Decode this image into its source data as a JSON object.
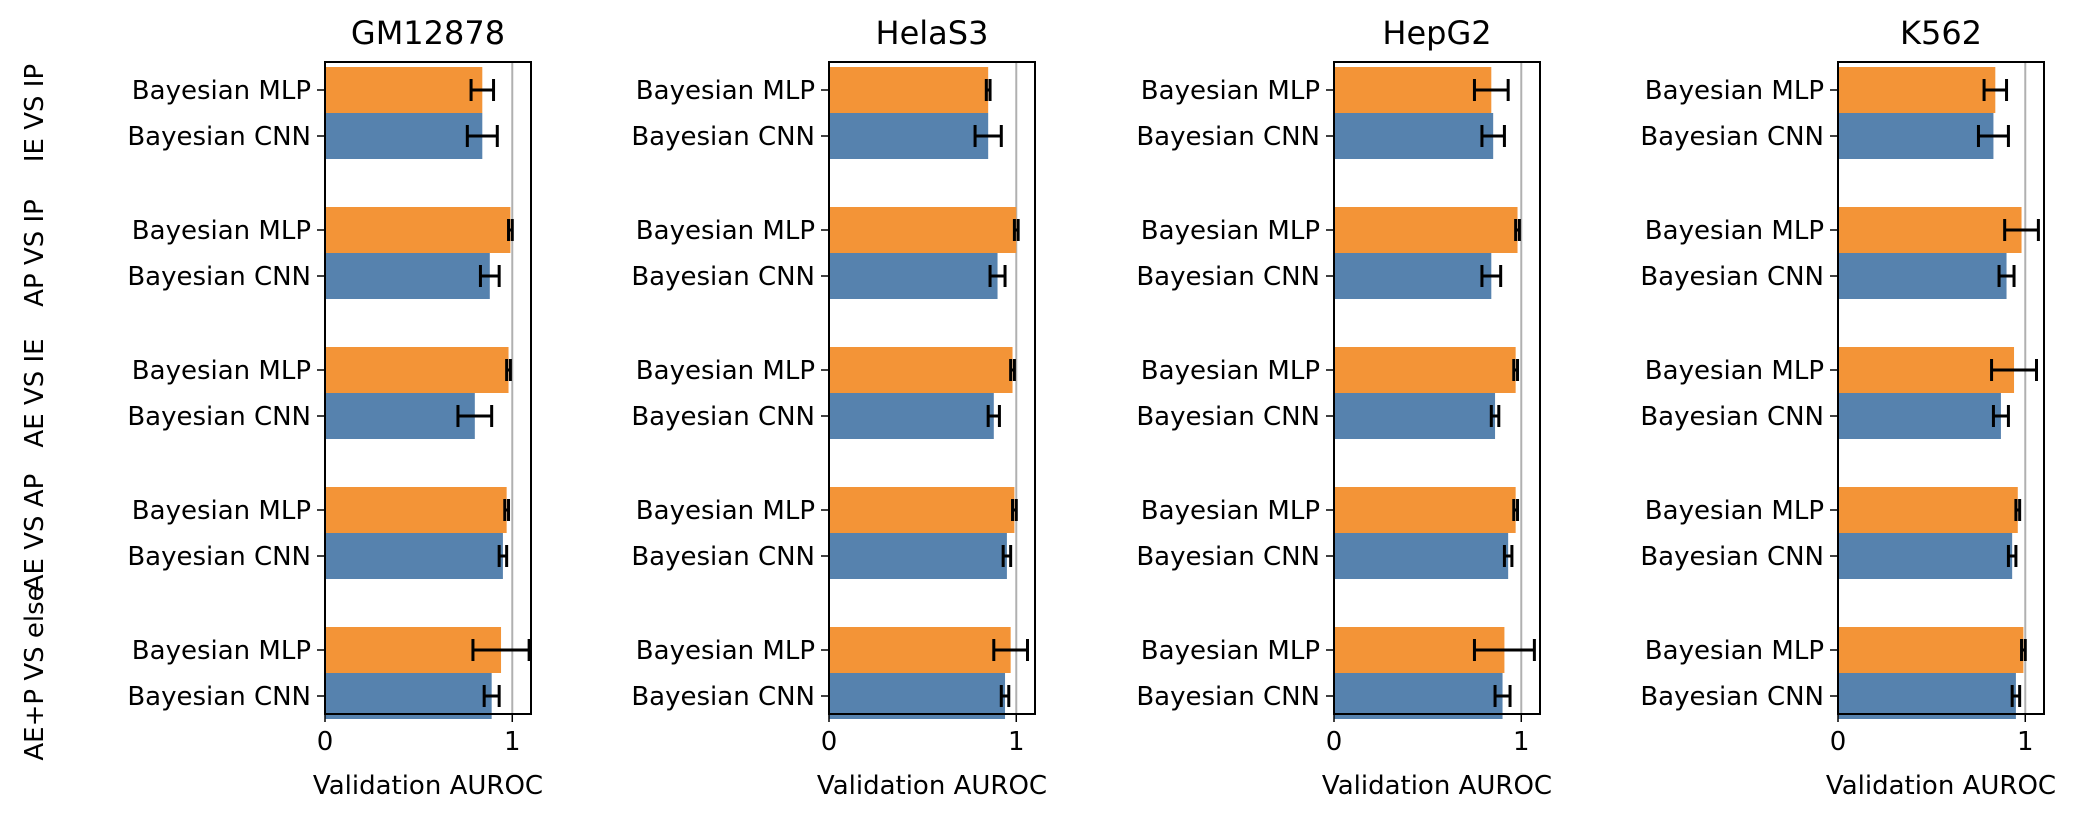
{
  "chart_data": {
    "type": "bar",
    "orientation": "horizontal",
    "colors": {
      "Bayesian MLP": "#f39437",
      "Bayesian CNN": "#5682ae",
      "error_bar": "#000000",
      "reference_line": "#b0b0b0"
    },
    "row_group_labels": [
      "IE VS IP",
      "AP VS IP",
      "AE VS IE",
      "AE VS AP",
      "AE+P VS else"
    ],
    "bar_labels": [
      "Bayesian MLP",
      "Bayesian CNN"
    ],
    "xlabel": "Validation AUROC",
    "xlim": [
      0,
      1.1
    ],
    "x_ticks": [
      "0",
      "1"
    ],
    "reference_line_x": 1.0,
    "grid": false,
    "panels": [
      {
        "title": "GM12878",
        "groups": [
          {
            "label": "IE VS IP",
            "Bayesian MLP": {
              "value": 0.84,
              "err": 0.06
            },
            "Bayesian CNN": {
              "value": 0.84,
              "err": 0.08
            }
          },
          {
            "label": "AP VS IP",
            "Bayesian MLP": {
              "value": 0.99,
              "err": 0.01
            },
            "Bayesian CNN": {
              "value": 0.88,
              "err": 0.05
            }
          },
          {
            "label": "AE VS IE",
            "Bayesian MLP": {
              "value": 0.98,
              "err": 0.01
            },
            "Bayesian CNN": {
              "value": 0.8,
              "err": 0.09
            }
          },
          {
            "label": "AE VS AP",
            "Bayesian MLP": {
              "value": 0.97,
              "err": 0.01
            },
            "Bayesian CNN": {
              "value": 0.95,
              "err": 0.02
            }
          },
          {
            "label": "AE+P VS else",
            "Bayesian MLP": {
              "value": 0.94,
              "err": 0.15
            },
            "Bayesian CNN": {
              "value": 0.89,
              "err": 0.04
            }
          }
        ]
      },
      {
        "title": "HelaS3",
        "groups": [
          {
            "label": "IE VS IP",
            "Bayesian MLP": {
              "value": 0.85,
              "err": 0.01
            },
            "Bayesian CNN": {
              "value": 0.85,
              "err": 0.07
            }
          },
          {
            "label": "AP VS IP",
            "Bayesian MLP": {
              "value": 1.0,
              "err": 0.01
            },
            "Bayesian CNN": {
              "value": 0.9,
              "err": 0.04
            }
          },
          {
            "label": "AE VS IE",
            "Bayesian MLP": {
              "value": 0.98,
              "err": 0.01
            },
            "Bayesian CNN": {
              "value": 0.88,
              "err": 0.03
            }
          },
          {
            "label": "AE VS AP",
            "Bayesian MLP": {
              "value": 0.99,
              "err": 0.01
            },
            "Bayesian CNN": {
              "value": 0.95,
              "err": 0.02
            }
          },
          {
            "label": "AE+P VS else",
            "Bayesian MLP": {
              "value": 0.97,
              "err": 0.09
            },
            "Bayesian CNN": {
              "value": 0.94,
              "err": 0.02
            }
          }
        ]
      },
      {
        "title": "HepG2",
        "groups": [
          {
            "label": "IE VS IP",
            "Bayesian MLP": {
              "value": 0.84,
              "err": 0.09
            },
            "Bayesian CNN": {
              "value": 0.85,
              "err": 0.06
            }
          },
          {
            "label": "AP VS IP",
            "Bayesian MLP": {
              "value": 0.98,
              "err": 0.01
            },
            "Bayesian CNN": {
              "value": 0.84,
              "err": 0.05
            }
          },
          {
            "label": "AE VS IE",
            "Bayesian MLP": {
              "value": 0.97,
              "err": 0.01
            },
            "Bayesian CNN": {
              "value": 0.86,
              "err": 0.02
            }
          },
          {
            "label": "AE VS AP",
            "Bayesian MLP": {
              "value": 0.97,
              "err": 0.01
            },
            "Bayesian CNN": {
              "value": 0.93,
              "err": 0.02
            }
          },
          {
            "label": "AE+P VS else",
            "Bayesian MLP": {
              "value": 0.91,
              "err": 0.16
            },
            "Bayesian CNN": {
              "value": 0.9,
              "err": 0.04
            }
          }
        ]
      },
      {
        "title": "K562",
        "groups": [
          {
            "label": "IE VS IP",
            "Bayesian MLP": {
              "value": 0.84,
              "err": 0.06
            },
            "Bayesian CNN": {
              "value": 0.83,
              "err": 0.08
            }
          },
          {
            "label": "AP VS IP",
            "Bayesian MLP": {
              "value": 0.98,
              "err": 0.09
            },
            "Bayesian CNN": {
              "value": 0.9,
              "err": 0.04
            }
          },
          {
            "label": "AE VS IE",
            "Bayesian MLP": {
              "value": 0.94,
              "err": 0.12
            },
            "Bayesian CNN": {
              "value": 0.87,
              "err": 0.04
            }
          },
          {
            "label": "AE VS AP",
            "Bayesian MLP": {
              "value": 0.96,
              "err": 0.01
            },
            "Bayesian CNN": {
              "value": 0.93,
              "err": 0.02
            }
          },
          {
            "label": "AE+P VS else",
            "Bayesian MLP": {
              "value": 0.99,
              "err": 0.01
            },
            "Bayesian CNN": {
              "value": 0.95,
              "err": 0.02
            }
          }
        ]
      }
    ]
  }
}
